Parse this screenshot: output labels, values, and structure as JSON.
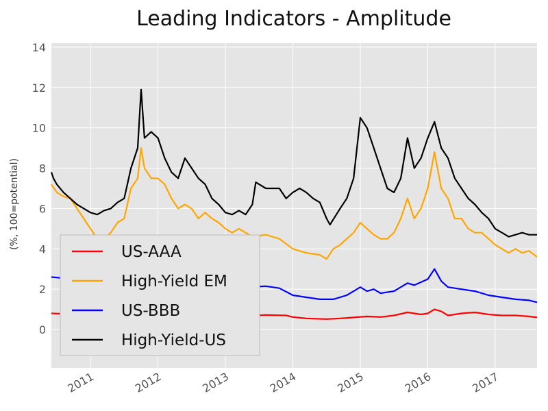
{
  "chart_data": {
    "type": "line",
    "title": "Leading Indicators - Amplitude",
    "ylabel": "(%, 100=potential)",
    "xlabel": "",
    "ylim": [
      -1.9,
      14.2
    ],
    "yticks": [
      0,
      2,
      4,
      6,
      8,
      10,
      12,
      14
    ],
    "xlim": [
      2010.42,
      2017.62
    ],
    "xticks": [
      {
        "x": 2011.0,
        "label": "2011"
      },
      {
        "x": 2012.0,
        "label": "2012"
      },
      {
        "x": 2013.0,
        "label": "2013"
      },
      {
        "x": 2014.0,
        "label": "2014"
      },
      {
        "x": 2015.0,
        "label": "2015"
      },
      {
        "x": 2016.0,
        "label": "2016"
      },
      {
        "x": 2017.0,
        "label": "2017"
      }
    ],
    "grid": true,
    "background": "#e5e5e5",
    "legend_placement": "lower-left",
    "series": [
      {
        "name": "US-AAA",
        "color": "#ff0000",
        "points": [
          [
            2010.42,
            0.8
          ],
          [
            2010.6,
            0.78
          ],
          [
            2010.8,
            0.75
          ],
          [
            2011.0,
            0.65
          ],
          [
            2011.2,
            0.62
          ],
          [
            2011.45,
            0.7
          ],
          [
            2011.6,
            0.78
          ],
          [
            2011.75,
            0.9
          ],
          [
            2011.9,
            0.95
          ],
          [
            2012.1,
            0.9
          ],
          [
            2012.3,
            0.85
          ],
          [
            2012.5,
            0.8
          ],
          [
            2012.8,
            0.75
          ],
          [
            2013.0,
            0.7
          ],
          [
            2013.3,
            0.68
          ],
          [
            2013.6,
            0.72
          ],
          [
            2013.9,
            0.7
          ],
          [
            2014.0,
            0.62
          ],
          [
            2014.2,
            0.55
          ],
          [
            2014.5,
            0.52
          ],
          [
            2014.7,
            0.55
          ],
          [
            2014.9,
            0.6
          ],
          [
            2015.1,
            0.65
          ],
          [
            2015.3,
            0.62
          ],
          [
            2015.5,
            0.7
          ],
          [
            2015.7,
            0.85
          ],
          [
            2015.9,
            0.75
          ],
          [
            2016.0,
            0.8
          ],
          [
            2016.1,
            1.0
          ],
          [
            2016.2,
            0.9
          ],
          [
            2016.3,
            0.7
          ],
          [
            2016.5,
            0.8
          ],
          [
            2016.7,
            0.85
          ],
          [
            2016.9,
            0.75
          ],
          [
            2017.1,
            0.7
          ],
          [
            2017.3,
            0.7
          ],
          [
            2017.5,
            0.65
          ],
          [
            2017.62,
            0.6
          ]
        ]
      },
      {
        "name": "High-Yield EM",
        "color": "#ffa500",
        "points": [
          [
            2010.42,
            7.2
          ],
          [
            2010.5,
            6.8
          ],
          [
            2010.6,
            6.6
          ],
          [
            2010.7,
            6.5
          ],
          [
            2010.8,
            6.0
          ],
          [
            2010.9,
            5.5
          ],
          [
            2011.0,
            5.0
          ],
          [
            2011.1,
            4.5
          ],
          [
            2011.2,
            4.5
          ],
          [
            2011.3,
            4.8
          ],
          [
            2011.4,
            5.3
          ],
          [
            2011.5,
            5.5
          ],
          [
            2011.6,
            7.0
          ],
          [
            2011.7,
            7.5
          ],
          [
            2011.75,
            9.0
          ],
          [
            2011.8,
            8.0
          ],
          [
            2011.9,
            7.5
          ],
          [
            2012.0,
            7.5
          ],
          [
            2012.1,
            7.2
          ],
          [
            2012.2,
            6.5
          ],
          [
            2012.3,
            6.0
          ],
          [
            2012.4,
            6.2
          ],
          [
            2012.5,
            6.0
          ],
          [
            2012.6,
            5.5
          ],
          [
            2012.7,
            5.8
          ],
          [
            2012.8,
            5.5
          ],
          [
            2012.9,
            5.3
          ],
          [
            2013.0,
            5.0
          ],
          [
            2013.1,
            4.8
          ],
          [
            2013.2,
            5.0
          ],
          [
            2013.3,
            4.8
          ],
          [
            2013.4,
            4.6
          ],
          [
            2013.6,
            4.7
          ],
          [
            2013.8,
            4.5
          ],
          [
            2014.0,
            4.0
          ],
          [
            2014.2,
            3.8
          ],
          [
            2014.4,
            3.7
          ],
          [
            2014.5,
            3.5
          ],
          [
            2014.6,
            4.0
          ],
          [
            2014.7,
            4.2
          ],
          [
            2014.8,
            4.5
          ],
          [
            2014.9,
            4.8
          ],
          [
            2015.0,
            5.3
          ],
          [
            2015.1,
            5.0
          ],
          [
            2015.2,
            4.7
          ],
          [
            2015.3,
            4.5
          ],
          [
            2015.4,
            4.5
          ],
          [
            2015.5,
            4.8
          ],
          [
            2015.6,
            5.5
          ],
          [
            2015.7,
            6.5
          ],
          [
            2015.8,
            5.5
          ],
          [
            2015.9,
            6.0
          ],
          [
            2016.0,
            7.0
          ],
          [
            2016.1,
            8.8
          ],
          [
            2016.2,
            7.0
          ],
          [
            2016.3,
            6.5
          ],
          [
            2016.4,
            5.5
          ],
          [
            2016.5,
            5.5
          ],
          [
            2016.6,
            5.0
          ],
          [
            2016.7,
            4.8
          ],
          [
            2016.8,
            4.8
          ],
          [
            2016.9,
            4.5
          ],
          [
            2017.0,
            4.2
          ],
          [
            2017.1,
            4.0
          ],
          [
            2017.2,
            3.8
          ],
          [
            2017.3,
            4.0
          ],
          [
            2017.4,
            3.8
          ],
          [
            2017.5,
            3.9
          ],
          [
            2017.62,
            3.6
          ]
        ]
      },
      {
        "name": "US-BBB",
        "color": "#0000ff",
        "points": [
          [
            2010.42,
            2.6
          ],
          [
            2010.6,
            2.55
          ],
          [
            2010.8,
            2.5
          ],
          [
            2011.0,
            2.2
          ],
          [
            2011.2,
            2.1
          ],
          [
            2011.5,
            2.3
          ],
          [
            2011.7,
            2.4
          ],
          [
            2011.8,
            2.6
          ],
          [
            2012.0,
            2.5
          ],
          [
            2012.3,
            2.4
          ],
          [
            2012.6,
            2.3
          ],
          [
            2013.0,
            2.2
          ],
          [
            2013.3,
            2.1
          ],
          [
            2013.6,
            2.15
          ],
          [
            2013.8,
            2.05
          ],
          [
            2014.0,
            1.7
          ],
          [
            2014.2,
            1.6
          ],
          [
            2014.4,
            1.5
          ],
          [
            2014.6,
            1.5
          ],
          [
            2014.8,
            1.7
          ],
          [
            2015.0,
            2.1
          ],
          [
            2015.1,
            1.9
          ],
          [
            2015.2,
            2.0
          ],
          [
            2015.3,
            1.8
          ],
          [
            2015.5,
            1.9
          ],
          [
            2015.7,
            2.3
          ],
          [
            2015.8,
            2.2
          ],
          [
            2016.0,
            2.5
          ],
          [
            2016.1,
            3.0
          ],
          [
            2016.2,
            2.4
          ],
          [
            2016.3,
            2.1
          ],
          [
            2016.5,
            2.0
          ],
          [
            2016.7,
            1.9
          ],
          [
            2016.9,
            1.7
          ],
          [
            2017.1,
            1.6
          ],
          [
            2017.3,
            1.5
          ],
          [
            2017.5,
            1.45
          ],
          [
            2017.62,
            1.35
          ]
        ]
      },
      {
        "name": "High-Yield-US",
        "color": "#000000",
        "points": [
          [
            2010.42,
            7.8
          ],
          [
            2010.45,
            7.5
          ],
          [
            2010.5,
            7.2
          ],
          [
            2010.6,
            6.8
          ],
          [
            2010.7,
            6.5
          ],
          [
            2010.8,
            6.2
          ],
          [
            2010.9,
            6.0
          ],
          [
            2011.0,
            5.8
          ],
          [
            2011.1,
            5.7
          ],
          [
            2011.2,
            5.9
          ],
          [
            2011.3,
            6.0
          ],
          [
            2011.4,
            6.3
          ],
          [
            2011.5,
            6.5
          ],
          [
            2011.6,
            8.0
          ],
          [
            2011.7,
            9.0
          ],
          [
            2011.75,
            11.9
          ],
          [
            2011.8,
            9.5
          ],
          [
            2011.9,
            9.8
          ],
          [
            2012.0,
            9.5
          ],
          [
            2012.1,
            8.5
          ],
          [
            2012.2,
            7.8
          ],
          [
            2012.3,
            7.5
          ],
          [
            2012.4,
            8.5
          ],
          [
            2012.5,
            8.0
          ],
          [
            2012.6,
            7.5
          ],
          [
            2012.7,
            7.2
          ],
          [
            2012.8,
            6.5
          ],
          [
            2012.9,
            6.2
          ],
          [
            2013.0,
            5.8
          ],
          [
            2013.1,
            5.7
          ],
          [
            2013.2,
            5.9
          ],
          [
            2013.3,
            5.7
          ],
          [
            2013.4,
            6.2
          ],
          [
            2013.45,
            7.3
          ],
          [
            2013.6,
            7.0
          ],
          [
            2013.8,
            7.0
          ],
          [
            2013.9,
            6.5
          ],
          [
            2014.0,
            6.8
          ],
          [
            2014.1,
            7.0
          ],
          [
            2014.2,
            6.8
          ],
          [
            2014.3,
            6.5
          ],
          [
            2014.4,
            6.3
          ],
          [
            2014.5,
            5.5
          ],
          [
            2014.55,
            5.2
          ],
          [
            2014.7,
            6.0
          ],
          [
            2014.8,
            6.5
          ],
          [
            2014.9,
            7.5
          ],
          [
            2015.0,
            10.5
          ],
          [
            2015.1,
            10.0
          ],
          [
            2015.2,
            9.0
          ],
          [
            2015.3,
            8.0
          ],
          [
            2015.4,
            7.0
          ],
          [
            2015.5,
            6.8
          ],
          [
            2015.6,
            7.5
          ],
          [
            2015.7,
            9.5
          ],
          [
            2015.8,
            8.0
          ],
          [
            2015.9,
            8.5
          ],
          [
            2016.0,
            9.5
          ],
          [
            2016.1,
            10.3
          ],
          [
            2016.2,
            9.0
          ],
          [
            2016.3,
            8.5
          ],
          [
            2016.4,
            7.5
          ],
          [
            2016.5,
            7.0
          ],
          [
            2016.6,
            6.5
          ],
          [
            2016.7,
            6.2
          ],
          [
            2016.8,
            5.8
          ],
          [
            2016.9,
            5.5
          ],
          [
            2017.0,
            5.0
          ],
          [
            2017.1,
            4.8
          ],
          [
            2017.2,
            4.6
          ],
          [
            2017.3,
            4.7
          ],
          [
            2017.4,
            4.8
          ],
          [
            2017.5,
            4.7
          ],
          [
            2017.62,
            4.7
          ]
        ]
      }
    ]
  }
}
